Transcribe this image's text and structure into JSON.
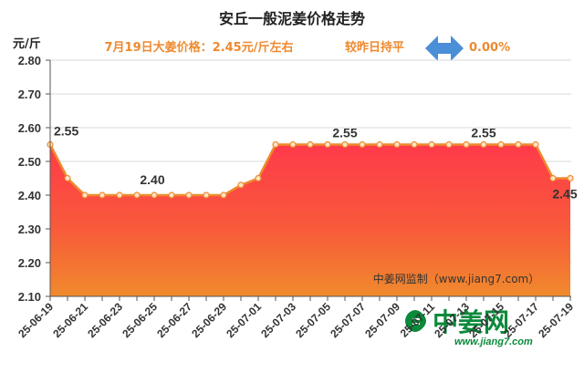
{
  "chart_data": {
    "type": "area",
    "title": "安丘一般泥姜价格走势",
    "subtitle": {
      "price_text": "7月19日大姜价格：2.45元/斤左右",
      "compare_text": "较昨日持平",
      "change_text": "0.00%"
    },
    "ylabel": "元/斤",
    "xlabel": "",
    "ylim": [
      2.1,
      2.8
    ],
    "yticks": [
      "2.80",
      "2.70",
      "2.60",
      "2.50",
      "2.40",
      "2.30",
      "2.20",
      "2.10"
    ],
    "ytick_values": [
      2.8,
      2.7,
      2.6,
      2.5,
      2.4,
      2.3,
      2.2,
      2.1
    ],
    "categories": [
      "25-06-19",
      "25-06-20",
      "25-06-21",
      "25-06-22",
      "25-06-23",
      "25-06-24",
      "25-06-25",
      "25-06-26",
      "25-06-27",
      "25-06-28",
      "25-06-29",
      "25-06-30",
      "25-07-01",
      "25-07-02",
      "25-07-03",
      "25-07-04",
      "25-07-05",
      "25-07-06",
      "25-07-07",
      "25-07-08",
      "25-07-09",
      "25-07-10",
      "25-07-11",
      "25-07-12",
      "25-07-13",
      "25-07-14",
      "25-07-15",
      "25-07-16",
      "25-07-17",
      "25-07-18",
      "25-07-19"
    ],
    "tick_labels": [
      "25-06-19",
      "25-06-21",
      "25-06-23",
      "25-06-25",
      "25-06-27",
      "25-06-29",
      "25-07-01",
      "25-07-03",
      "25-07-05",
      "25-07-07",
      "25-07-09",
      "25-07-11",
      "25-07-13",
      "25-07-15",
      "25-07-17",
      "25-07-19"
    ],
    "values": [
      2.55,
      2.45,
      2.4,
      2.4,
      2.4,
      2.4,
      2.4,
      2.4,
      2.4,
      2.4,
      2.4,
      2.43,
      2.45,
      2.55,
      2.55,
      2.55,
      2.55,
      2.55,
      2.55,
      2.55,
      2.55,
      2.55,
      2.55,
      2.55,
      2.55,
      2.55,
      2.55,
      2.55,
      2.55,
      2.45,
      2.45
    ],
    "data_labels": [
      {
        "index": 0,
        "text": "2.55"
      },
      {
        "index": 6,
        "text": "2.40"
      },
      {
        "index": 17,
        "text": "2.55"
      },
      {
        "index": 25,
        "text": "2.55"
      },
      {
        "index": 30,
        "text": "2.45"
      }
    ],
    "grid": "horizontal",
    "legend": "none",
    "source_note": "中姜网监制（www.jiang7.com）",
    "watermark": {
      "text": "中姜网",
      "url": "www.jiang7.com"
    },
    "colors": {
      "line": "#ee8a2e",
      "fill_top": "#ff3a4a",
      "fill_bottom": "#f08a2c",
      "marker_fill": "#fbe3c4",
      "arrow": "#4a8fd8",
      "watermark": "#0a8a3a"
    }
  }
}
